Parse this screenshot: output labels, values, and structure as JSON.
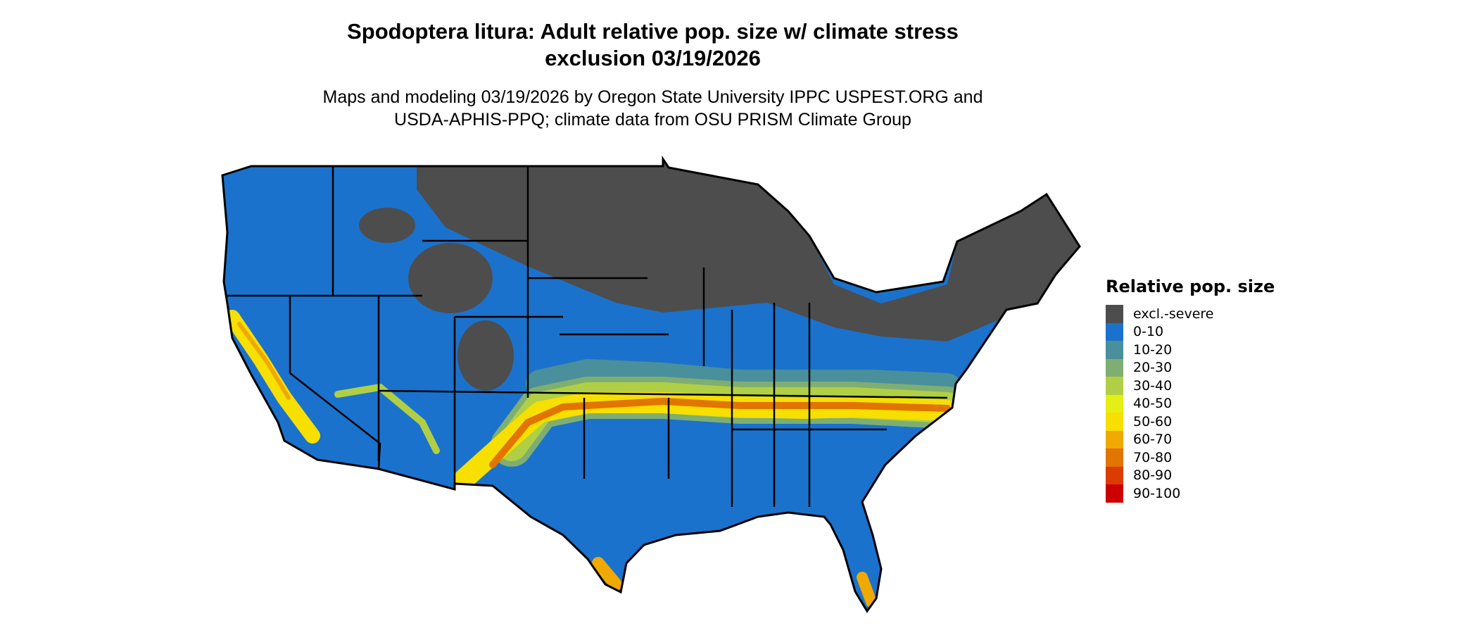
{
  "title_line1": "Spodoptera litura: Adult relative pop. size w/ climate stress",
  "title_line2": "exclusion 03/19/2026",
  "subtitle_line1": "Maps and modeling 03/19/2026 by Oregon State University IPPC USPEST.ORG and",
  "subtitle_line2": "USDA-APHIS-PPQ; climate data from OSU PRISM Climate Group",
  "legend": {
    "title": "Relative pop. size",
    "items": [
      {
        "label": "excl.-severe",
        "color": "#4d4d4d"
      },
      {
        "label": "0-10",
        "color": "#1b72cc"
      },
      {
        "label": "10-20",
        "color": "#4a8f9c"
      },
      {
        "label": "20-30",
        "color": "#7eae71"
      },
      {
        "label": "30-40",
        "color": "#b1cf45"
      },
      {
        "label": "40-50",
        "color": "#e4ef15"
      },
      {
        "label": "50-60",
        "color": "#f7df00"
      },
      {
        "label": "60-70",
        "color": "#efa900"
      },
      {
        "label": "70-80",
        "color": "#e27400"
      },
      {
        "label": "80-90",
        "color": "#db3c00"
      },
      {
        "label": "90-100",
        "color": "#cc0000"
      }
    ]
  },
  "chart_data": {
    "type": "heatmap",
    "region": "Contiguous United States",
    "legend_placement": "right",
    "summary": {
      "excl.-severe": "northern tier (ND, SD, MN, WI, MI, NY, New England) and Rocky Mountain highlands",
      "0-10": "most of the West, Plains, Midwest and Gulf states",
      "40-80": "band from southern CA/AZ/NM through OK/AR/TN/NC; south TX tip; south FL tip"
    }
  }
}
